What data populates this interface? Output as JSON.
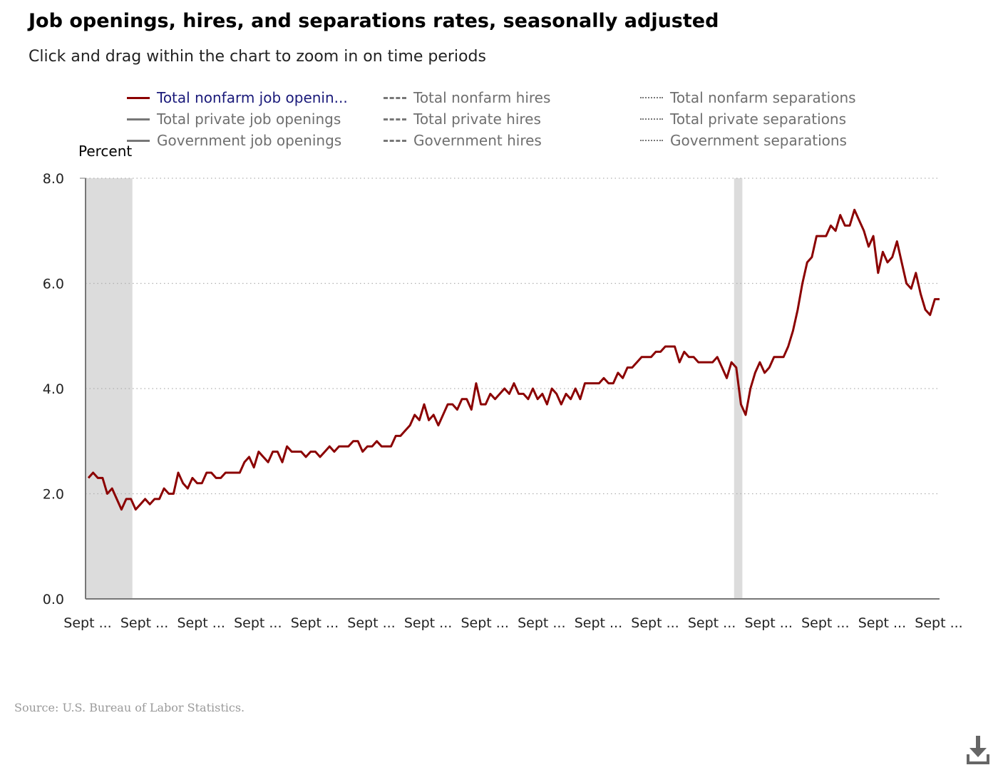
{
  "title": "Job openings, hires, and separations rates, seasonally adjusted",
  "subtitle": "Click and drag within the chart to zoom in on time periods",
  "source": "Source: U.S. Bureau of Labor Statistics.",
  "icons": {
    "download": "download-icon"
  },
  "legend": [
    {
      "label": "Total nonfarm job openin...",
      "style": "solid",
      "active": true
    },
    {
      "label": "Total nonfarm hires",
      "style": "dashed",
      "active": false
    },
    {
      "label": "Total nonfarm separations",
      "style": "dotted",
      "active": false
    },
    {
      "label": "Total private job openings",
      "style": "solid",
      "active": false
    },
    {
      "label": "Total private hires",
      "style": "dashed",
      "active": false
    },
    {
      "label": "Total private separations",
      "style": "dotted",
      "active": false
    },
    {
      "label": "Government job openings",
      "style": "solid",
      "active": false
    },
    {
      "label": "Government hires",
      "style": "dashed",
      "active": false
    },
    {
      "label": "Government separations",
      "style": "dotted",
      "active": false
    }
  ],
  "colors": {
    "series": "#8b0000",
    "shading": "#dcdcdc",
    "grid": "#b0b0b0",
    "axis": "#777777"
  },
  "chart_data": {
    "type": "line",
    "ylabel": "Percent",
    "ylim": [
      0,
      8
    ],
    "yticks": [
      "0.0",
      "2.0",
      "4.0",
      "6.0",
      "8.0"
    ],
    "grid": "horizontal dotted",
    "xticks": [
      "Sept ...",
      "Sept ...",
      "Sept ...",
      "Sept ...",
      "Sept ...",
      "Sept ...",
      "Sept ...",
      "Sept ...",
      "Sept ...",
      "Sept ...",
      "Sept ...",
      "Sept ...",
      "Sept ...",
      "Sept ...",
      "Sept ...",
      "Sept ..."
    ],
    "recessions_month_index": [
      [
        0,
        9
      ],
      [
        137,
        138
      ]
    ],
    "series": [
      {
        "name": "Total nonfarm job openin...",
        "values": [
          2.3,
          2.4,
          2.3,
          2.3,
          2.0,
          2.1,
          1.9,
          1.7,
          1.9,
          1.9,
          1.7,
          1.8,
          1.9,
          1.8,
          1.9,
          1.9,
          2.1,
          2.0,
          2.0,
          2.4,
          2.2,
          2.1,
          2.3,
          2.2,
          2.2,
          2.4,
          2.4,
          2.3,
          2.3,
          2.4,
          2.4,
          2.4,
          2.4,
          2.6,
          2.7,
          2.5,
          2.8,
          2.7,
          2.6,
          2.8,
          2.8,
          2.6,
          2.9,
          2.8,
          2.8,
          2.8,
          2.7,
          2.8,
          2.8,
          2.7,
          2.8,
          2.9,
          2.8,
          2.9,
          2.9,
          2.9,
          3.0,
          3.0,
          2.8,
          2.9,
          2.9,
          3.0,
          2.9,
          2.9,
          2.9,
          3.1,
          3.1,
          3.2,
          3.3,
          3.5,
          3.4,
          3.7,
          3.4,
          3.5,
          3.3,
          3.5,
          3.7,
          3.7,
          3.6,
          3.8,
          3.8,
          3.6,
          4.1,
          3.7,
          3.7,
          3.9,
          3.8,
          3.9,
          4.0,
          3.9,
          4.1,
          3.9,
          3.9,
          3.8,
          4.0,
          3.8,
          3.9,
          3.7,
          4.0,
          3.9,
          3.7,
          3.9,
          3.8,
          4.0,
          3.8,
          4.1,
          4.1,
          4.1,
          4.1,
          4.2,
          4.1,
          4.1,
          4.3,
          4.2,
          4.4,
          4.4,
          4.5,
          4.6,
          4.6,
          4.6,
          4.7,
          4.7,
          4.8,
          4.8,
          4.8,
          4.5,
          4.7,
          4.6,
          4.6,
          4.5,
          4.5,
          4.5,
          4.5,
          4.6,
          4.4,
          4.2,
          4.5,
          4.4,
          3.7,
          3.5,
          4.0,
          4.3,
          4.5,
          4.3,
          4.4,
          4.6,
          4.6,
          4.6,
          4.8,
          5.1,
          5.5,
          6.0,
          6.4,
          6.5,
          6.9,
          6.9,
          6.9,
          7.1,
          7.0,
          7.3,
          7.1,
          7.1,
          7.4,
          7.2,
          7.0,
          6.7,
          6.9,
          6.2,
          6.6,
          6.4,
          6.5,
          6.8,
          6.4,
          6.0,
          5.9,
          6.2,
          5.8,
          5.5,
          5.4,
          5.7,
          5.7
        ]
      }
    ]
  }
}
